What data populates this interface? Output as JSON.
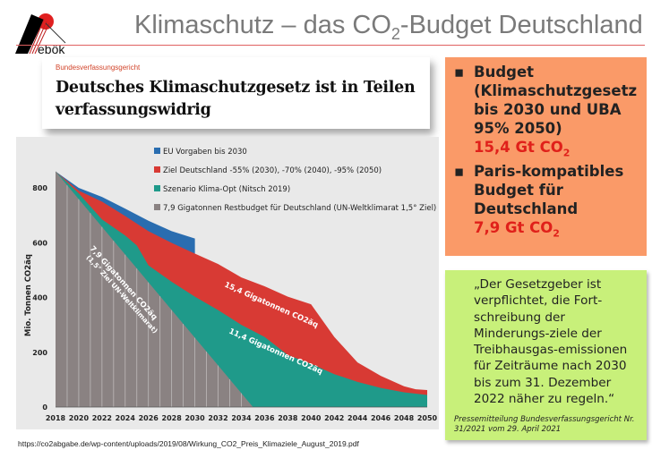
{
  "header": {
    "logo_text": "ebök",
    "title_pre": "Klimaschutz – das CO",
    "title_sub": "2",
    "title_post": "-Budget Deutschland"
  },
  "headline": {
    "kicker": "Bundesverfassungsgericht",
    "text": "Deutsches Klimaschutzgesetz ist in Teilen verfassungswidrig"
  },
  "budget_box": {
    "item1_text": "Budget (Klimaschutzgesetz bis 2030 und UBA 95% 2050)",
    "item1_value": "15,4 Gt CO",
    "item1_sub": "2",
    "item2_text": "Paris-kompatibles Budget für Deutschland",
    "item2_value": "7,9 Gt CO",
    "item2_sub": "2"
  },
  "quote_box": {
    "quote": "„Der Gesetzgeber ist verpflichtet, die Fort-schreibung der Minderungs-ziele der Treibhausgas-emissionen für Zeiträume nach 2030 bis zum 31. Dezember 2022 näher zu regeln.“",
    "source": "Pressemitteilung Bundesverfassungsgericht Nr. 31/2021 vom 29. April 2021"
  },
  "footer": {
    "url": "https://co2abgabe.de/wp-content/uploads/2019/08/Wirkung_CO2_Preis_Klimaziele_August_2019.pdf"
  },
  "chart_data": {
    "type": "area",
    "ylabel": "Mio. Tonnen CO2äq",
    "ylim": [
      0,
      900
    ],
    "yticks": [
      0,
      200,
      400,
      600,
      800
    ],
    "xticks": [
      2018,
      2020,
      2022,
      2024,
      2026,
      2028,
      2030,
      2032,
      2034,
      2036,
      2038,
      2040,
      2042,
      2044,
      2046,
      2048,
      2050
    ],
    "legend_position": "top-right",
    "series": [
      {
        "name": "EU Vorgaben bis 2030",
        "color": "#2a6db0",
        "x": [
          2018,
          2020,
          2022,
          2024,
          2026,
          2028,
          2030
        ],
        "y": [
          860,
          800,
          767,
          724,
          680,
          642,
          615
        ]
      },
      {
        "name": "Ziel Deutschland -55% (2030), -70% (2040), -95% (2050)",
        "color": "#d83a34",
        "x": [
          2018,
          2020,
          2022,
          2024,
          2026,
          2028,
          2030,
          2032,
          2034,
          2036,
          2038,
          2040,
          2042,
          2044,
          2046,
          2048,
          2049,
          2050
        ],
        "y": [
          860,
          790,
          750,
          697,
          642,
          599,
          560,
          522,
          473,
          441,
          403,
          375,
          256,
          163,
          114,
          76,
          65,
          62
        ]
      },
      {
        "name": "Szenario Klima-Opt (Nitsch 2019)",
        "color": "#1f9a8a",
        "x": [
          2018,
          2020,
          2022,
          2024,
          2025,
          2026,
          2028,
          2030,
          2032,
          2034,
          2036,
          2038,
          2040,
          2042,
          2044,
          2046,
          2048,
          2050
        ],
        "y": [
          860,
          780,
          685,
          626,
          590,
          517,
          457,
          403,
          354,
          300,
          256,
          190,
          158,
          120,
          92,
          70,
          54,
          44
        ]
      },
      {
        "name": "7,9 Gigatonnen Restbudget für Deutschland (UN-Weltklimarat 1,5° Ziel)",
        "color": "#8a8282",
        "x": [
          2018,
          2035,
          2050
        ],
        "y": [
          860,
          0,
          0
        ]
      }
    ],
    "annotations": [
      "7,9 Gigatonnen CO2äq",
      "(1,5° Ziel UN-Weltklimarat)",
      "15,4 Gigatonnen CO2äq",
      "11,4 Gigatonnen CO2äq"
    ]
  }
}
